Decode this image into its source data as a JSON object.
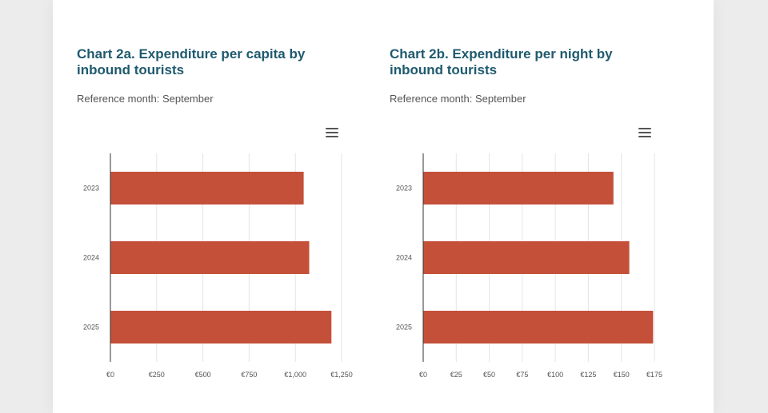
{
  "charts": [
    {
      "title": "Chart 2a. Expenditure per capita by inbound tourists",
      "subtitle": "Reference month: September",
      "menu_icon": "hamburger-menu-icon"
    },
    {
      "title": "Chart 2b. Expenditure per night by inbound tourists",
      "subtitle": "Reference month: September",
      "menu_icon": "hamburger-menu-icon"
    }
  ],
  "colors": {
    "bar": "#c4503a",
    "title": "#1f5a6e",
    "grid": "#e4e4e4",
    "axis": "#333333"
  },
  "chart_data": [
    {
      "type": "bar",
      "orientation": "horizontal",
      "title": "Chart 2a. Expenditure per capita by inbound tourists",
      "subtitle": "Reference month: September",
      "categories": [
        "2023",
        "2024",
        "2025"
      ],
      "values": [
        1045,
        1075,
        1195
      ],
      "xlim": [
        0,
        1250
      ],
      "ticks": [
        0,
        250,
        500,
        750,
        1000,
        1250
      ],
      "tick_labels": [
        "€0",
        "€250",
        "€500",
        "€750",
        "€1,000",
        "€1,250"
      ],
      "grid": true
    },
    {
      "type": "bar",
      "orientation": "horizontal",
      "title": "Chart 2b. Expenditure per night by inbound tourists",
      "subtitle": "Reference month: September",
      "categories": [
        "2023",
        "2024",
        "2025"
      ],
      "values": [
        144,
        156,
        174
      ],
      "xlim": [
        0,
        175
      ],
      "ticks": [
        0,
        25,
        50,
        75,
        100,
        125,
        150,
        175
      ],
      "tick_labels": [
        "€0",
        "€25",
        "€50",
        "€75",
        "€100",
        "€125",
        "€150",
        "€175"
      ],
      "grid": true
    }
  ]
}
